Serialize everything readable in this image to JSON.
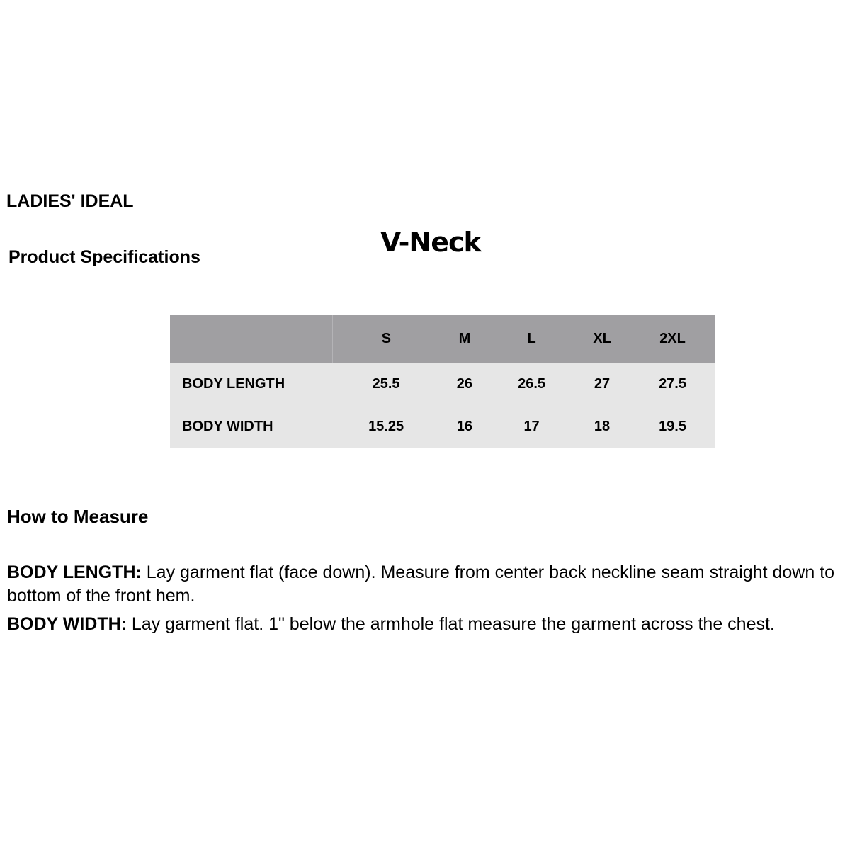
{
  "header": {
    "brand": "LADIES' IDEAL",
    "subtitle": "Product Specifications",
    "style": "V-Neck"
  },
  "table": {
    "columns": [
      "",
      "S",
      "M",
      "L",
      "XL",
      "2XL"
    ],
    "rows": [
      [
        "BODY LENGTH",
        "25.5",
        "26",
        "26.5",
        "27",
        "27.5"
      ],
      [
        "BODY WIDTH",
        "15.25",
        "16",
        "17",
        "18",
        "19.5"
      ]
    ]
  },
  "measure": {
    "title": "How to Measure",
    "items": [
      {
        "label": "BODY LENGTH:",
        "text": " Lay garment flat (face down). Measure from center back neckline seam straight down to bottom of the front hem."
      },
      {
        "label": "BODY WIDTH:",
        "text": " Lay garment flat. 1\" below the armhole flat measure the garment across the chest."
      }
    ]
  }
}
